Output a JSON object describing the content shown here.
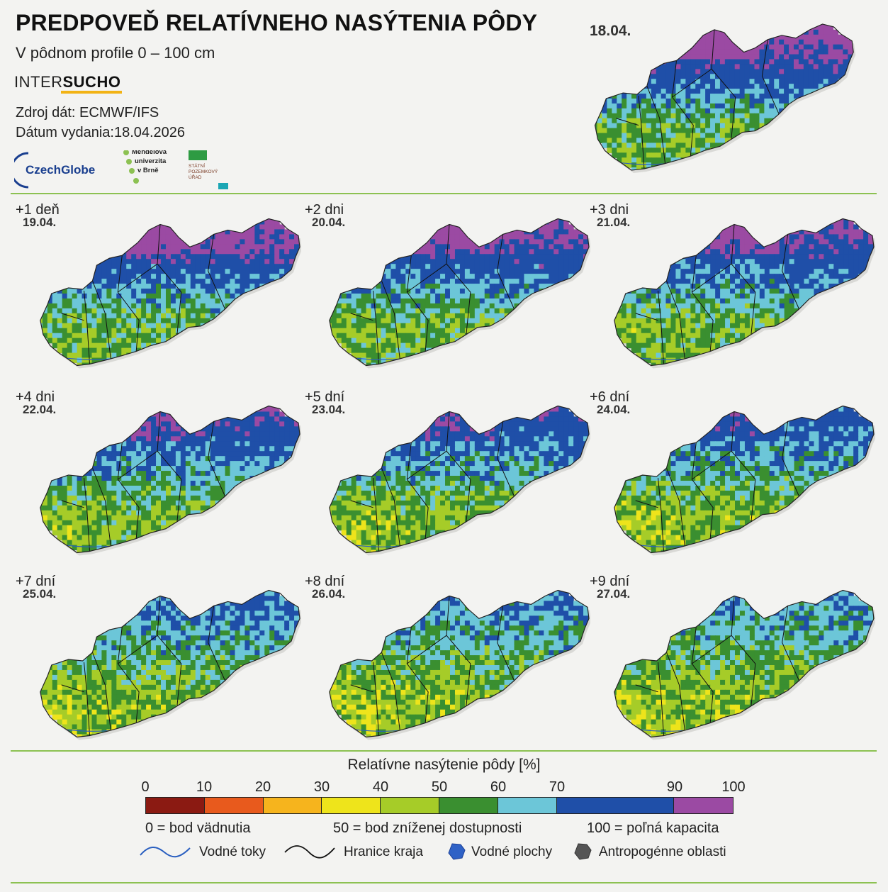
{
  "header": {
    "title": "PREDPOVEĎ RELATÍVNEHO NASÝTENIA PÔDY",
    "subtitle": "V pôdnom profile 0 – 100 cm",
    "brand_a": "INTER",
    "brand_b": "SUCHO",
    "source": "Zdroj dát: ECMWF/IFS",
    "issued": "Dátum vydania:18.04.2026"
  },
  "logos": {
    "czechglobe": "CzechGlobe",
    "mendel_1": "Mendelova",
    "mendel_2": "univerzita",
    "mendel_3": "v Brně",
    "spu_1": "STÁTNÍ",
    "spu_2": "POZEMKOVÝ",
    "spu_3": "ÚŘAD"
  },
  "main_map": {
    "date": "18.04."
  },
  "forecasts": [
    {
      "label": "+1 deň",
      "date": "19.04.",
      "wet": 0.95
    },
    {
      "label": "+2 dni",
      "date": "20.04.",
      "wet": 0.9
    },
    {
      "label": "+3 dni",
      "date": "21.04.",
      "wet": 0.86
    },
    {
      "label": "+4 dni",
      "date": "22.04.",
      "wet": 0.76
    },
    {
      "label": "+5 dní",
      "date": "23.04.",
      "wet": 0.7
    },
    {
      "label": "+6 dní",
      "date": "24.04.",
      "wet": 0.64
    },
    {
      "label": "+7 dní",
      "date": "25.04.",
      "wet": 0.56
    },
    {
      "label": "+8 dní",
      "date": "26.04.",
      "wet": 0.5
    },
    {
      "label": "+9 dní",
      "date": "27.04.",
      "wet": 0.46
    }
  ],
  "legend": {
    "title": "Relatívne nasýtenie pôdy [%]",
    "ticks": [
      "0",
      "10",
      "20",
      "30",
      "40",
      "50",
      "60",
      "70",
      "90",
      "100"
    ],
    "bins": [
      {
        "from": 0,
        "to": 10,
        "color": "#8b1a12"
      },
      {
        "from": 10,
        "to": 20,
        "color": "#e85a1d"
      },
      {
        "from": 20,
        "to": 30,
        "color": "#f6b41d"
      },
      {
        "from": 30,
        "to": 40,
        "color": "#eee41b"
      },
      {
        "from": 40,
        "to": 50,
        "color": "#a6cc28"
      },
      {
        "from": 50,
        "to": 60,
        "color": "#3a8f30"
      },
      {
        "from": 60,
        "to": 70,
        "color": "#6cc6d8"
      },
      {
        "from": 70,
        "to": 90,
        "color": "#1f4fa8"
      },
      {
        "from": 90,
        "to": 100,
        "color": "#9b4aa3"
      }
    ],
    "note_left": "0 = bod vädnutia",
    "note_mid": "50 = bod zníženej dostupnosti",
    "note_right": "100 = poľná kapacita",
    "rivers": "Vodné toky",
    "borders": "Hranice kraja",
    "water": "Vodné plochy",
    "urban": "Antropogénne oblasti"
  }
}
